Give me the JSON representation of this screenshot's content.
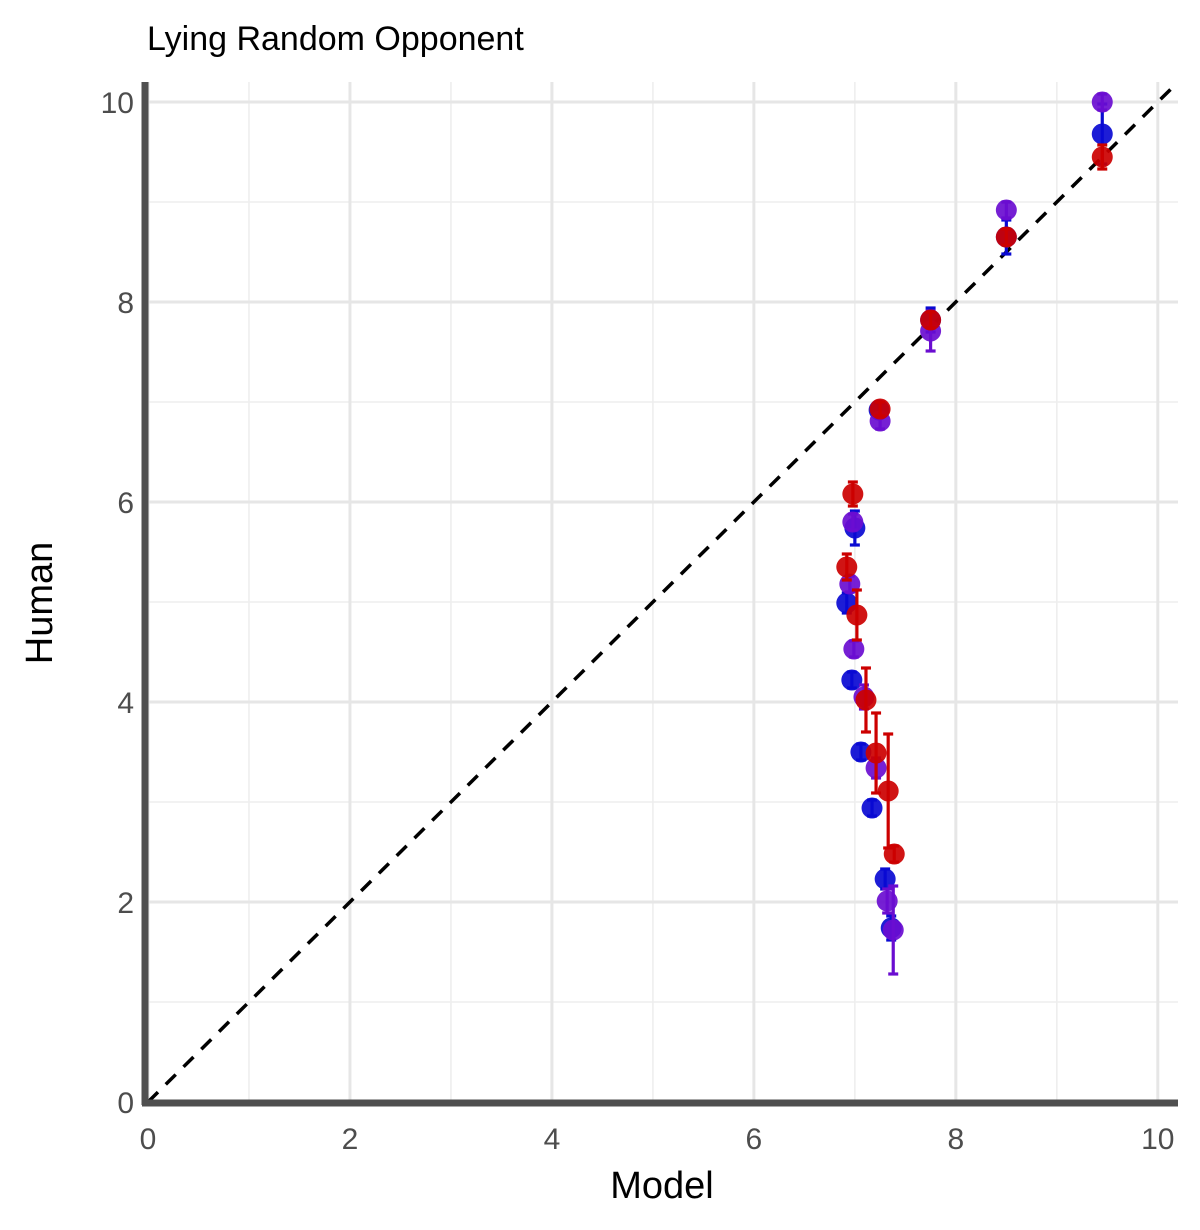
{
  "chart_data": {
    "type": "scatter",
    "title": "Lying Random Opponent",
    "xlabel": "Model",
    "ylabel": "Human",
    "xlim": [
      0,
      10.2
    ],
    "ylim": [
      0,
      10.2
    ],
    "x_ticks": [
      "0",
      "2",
      "4",
      "6",
      "8",
      "10"
    ],
    "y_ticks": [
      "0",
      "2",
      "4",
      "6",
      "8",
      "10"
    ],
    "grid": true,
    "legend": "none",
    "reference_line": "y = x (dashed)",
    "error_bars": true,
    "colors": [
      "#0a0ad2",
      "#6a0dd0",
      "#cc0000"
    ],
    "series": [
      {
        "color": "#0a0ad2",
        "points": [
          {
            "x": 6.92,
            "y": 4.99,
            "err": 0.1
          },
          {
            "x": 6.97,
            "y": 4.22,
            "err": 0.08
          },
          {
            "x": 7.0,
            "y": 5.74,
            "err": 0.17
          },
          {
            "x": 7.06,
            "y": 3.5,
            "err": 0.08
          },
          {
            "x": 7.17,
            "y": 2.94,
            "err": 0.08
          },
          {
            "x": 7.24,
            "y": 6.92,
            "err": 0.07
          },
          {
            "x": 7.3,
            "y": 2.23,
            "err": 0.1
          },
          {
            "x": 7.36,
            "y": 1.74,
            "err": 0.12
          },
          {
            "x": 7.75,
            "y": 7.82,
            "err": 0.12
          },
          {
            "x": 8.5,
            "y": 8.65,
            "err": 0.17
          },
          {
            "x": 9.45,
            "y": 9.68,
            "err": 0.3
          }
        ]
      },
      {
        "color": "#6a0dd0",
        "points": [
          {
            "x": 6.95,
            "y": 5.18,
            "err": 0.08
          },
          {
            "x": 6.99,
            "y": 4.53,
            "err": 0.08
          },
          {
            "x": 6.98,
            "y": 5.8,
            "err": 0.08
          },
          {
            "x": 7.09,
            "y": 4.05,
            "err": 0.12
          },
          {
            "x": 7.21,
            "y": 3.34,
            "err": 0.1
          },
          {
            "x": 7.25,
            "y": 6.81,
            "err": 0.08
          },
          {
            "x": 7.32,
            "y": 2.01,
            "err": 0.12
          },
          {
            "x": 7.38,
            "y": 1.72,
            "err": 0.44
          },
          {
            "x": 7.75,
            "y": 7.71,
            "err": 0.2
          },
          {
            "x": 8.5,
            "y": 8.92,
            "err": 0.08
          },
          {
            "x": 9.45,
            "y": 10.0,
            "err": 0.08
          }
        ]
      },
      {
        "color": "#cc0000",
        "points": [
          {
            "x": 6.92,
            "y": 5.35,
            "err": 0.13
          },
          {
            "x": 7.02,
            "y": 4.87,
            "err": 0.25
          },
          {
            "x": 6.98,
            "y": 6.08,
            "err": 0.12
          },
          {
            "x": 7.11,
            "y": 4.02,
            "err": 0.32
          },
          {
            "x": 7.21,
            "y": 3.49,
            "err": 0.4
          },
          {
            "x": 7.25,
            "y": 6.93,
            "err": 0.07
          },
          {
            "x": 7.33,
            "y": 3.11,
            "err": 0.57
          },
          {
            "x": 7.39,
            "y": 2.48,
            "err": 0.08
          },
          {
            "x": 7.75,
            "y": 7.82,
            "err": 0.08
          },
          {
            "x": 8.5,
            "y": 8.65,
            "err": 0.08
          },
          {
            "x": 9.45,
            "y": 9.45,
            "err": 0.12
          }
        ]
      }
    ]
  }
}
